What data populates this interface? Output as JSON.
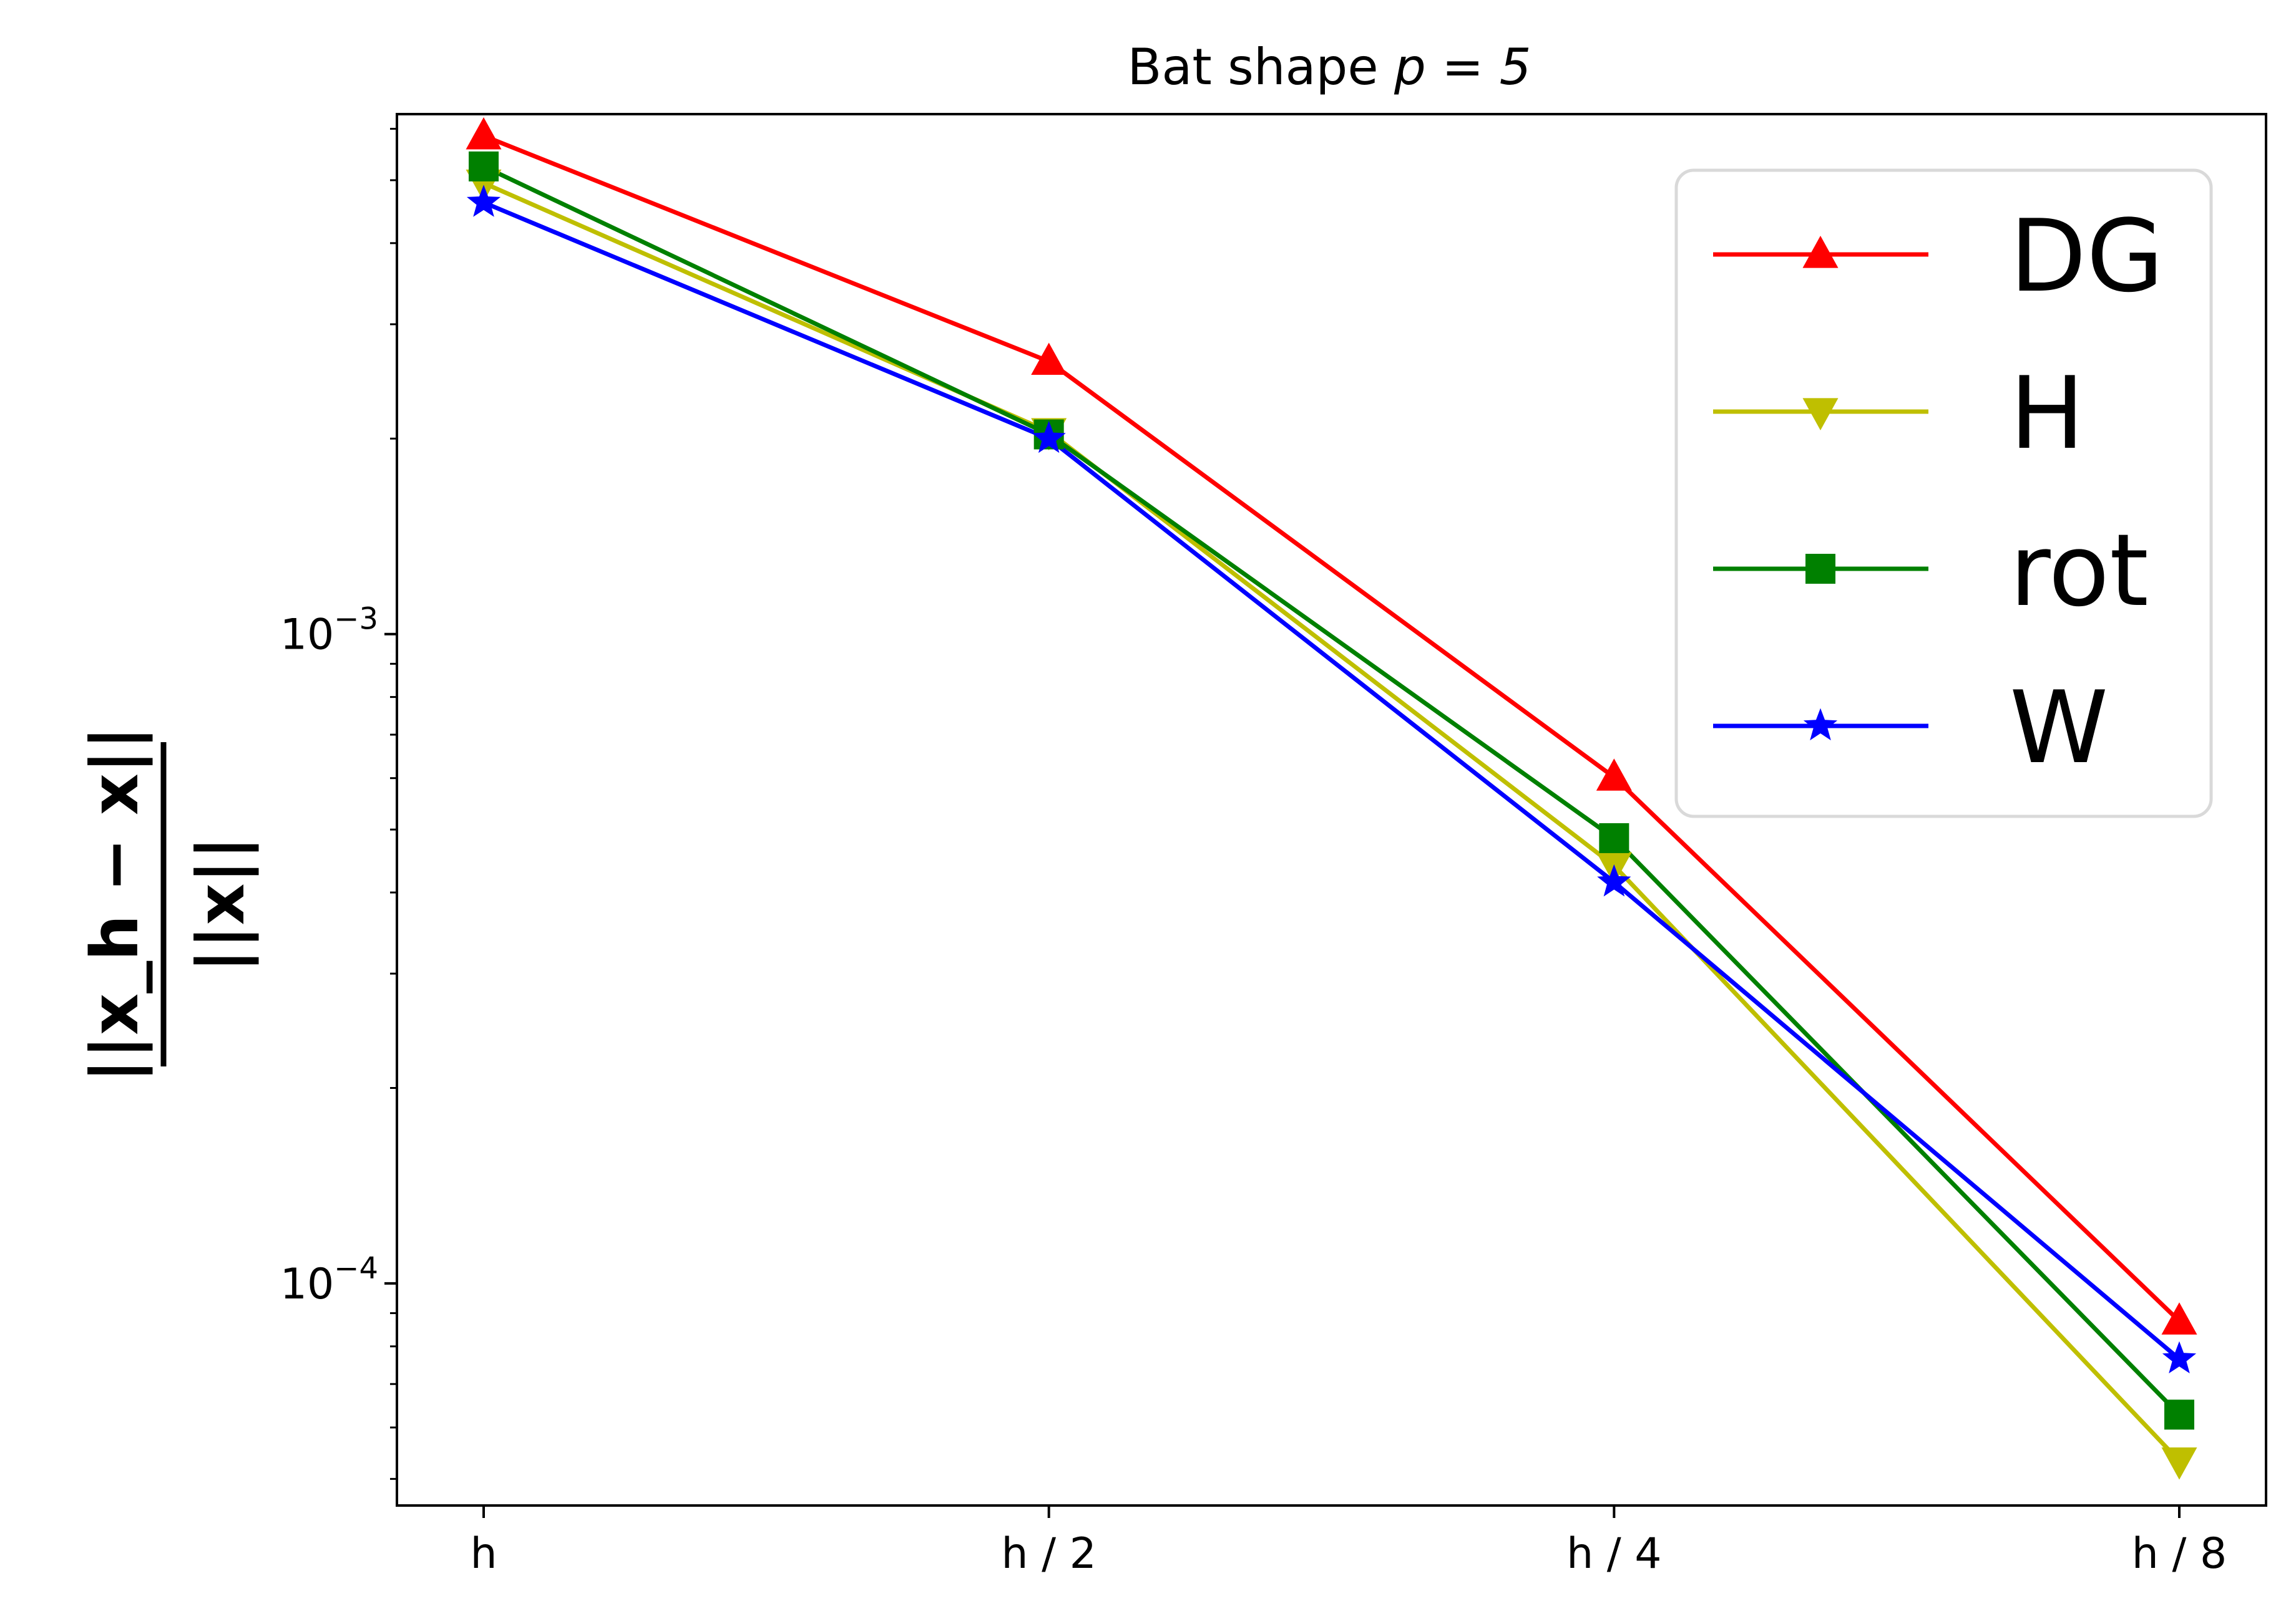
{
  "chart_data": {
    "type": "line",
    "title_prefix": "Bat shape ",
    "title_math": "p = 5",
    "ylabel_numerator": "||x_h − x||",
    "ylabel_denominator": "||x||",
    "yscale": "log",
    "ylim": [
      4.55e-05,
      0.00632
    ],
    "categories": [
      "h",
      "h / 2",
      "h / 4",
      "h / 8"
    ],
    "ytick_labels": [
      {
        "base": "10",
        "exp": "−3",
        "value": 0.001
      },
      {
        "base": "10",
        "exp": "−4",
        "value": 0.0001
      }
    ],
    "legend_position": "upper right",
    "grid": false,
    "series": [
      {
        "name": "DG",
        "color": "#ff0000",
        "marker": "triangle-up",
        "values": [
          0.00585,
          0.00263,
          0.000602,
          8.75e-05
        ]
      },
      {
        "name": "H",
        "color": "#bfbf00",
        "marker": "triangle-down",
        "values": [
          0.00495,
          0.00205,
          0.00044,
          5.33e-05
        ]
      },
      {
        "name": "rot",
        "color": "#008000",
        "marker": "square",
        "values": [
          0.00525,
          0.00203,
          0.000485,
          6.28e-05
        ]
      },
      {
        "name": "W",
        "color": "#0000ff",
        "marker": "star",
        "values": [
          0.00462,
          0.002,
          0.000415,
          7.65e-05
        ]
      }
    ]
  }
}
